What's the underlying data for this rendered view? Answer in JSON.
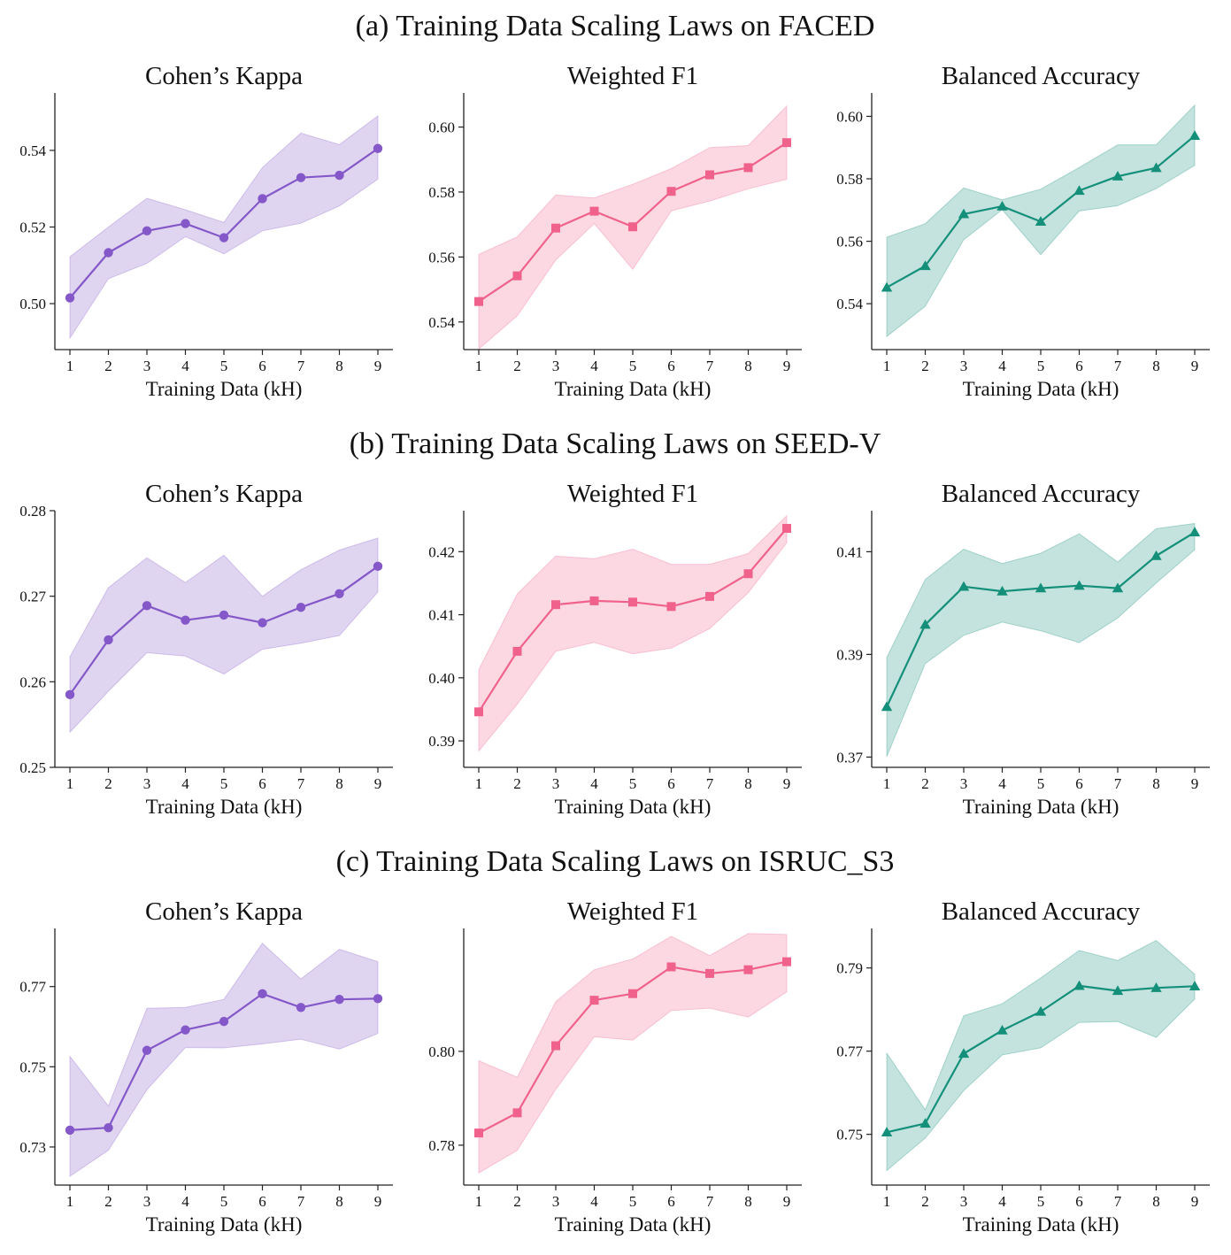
{
  "colors": {
    "kappa": "#8458c8",
    "f1": "#f0628c",
    "bacc": "#14907a"
  },
  "chart_data": [
    {
      "row_title": "(a) Training Data Scaling Laws on FACED",
      "panels": [
        {
          "type": "line",
          "title": "Cohen’s Kappa",
          "xlabel": "Training Data (kH)",
          "color_key": "kappa",
          "marker": "circle",
          "x": [
            1,
            2,
            3,
            4,
            5,
            6,
            7,
            8,
            9
          ],
          "ylim": [
            0.488,
            0.555
          ],
          "yticks": [
            0.5,
            0.52,
            0.54
          ],
          "ytick_labels": [
            "0.50",
            "0.52",
            "0.54"
          ],
          "values": [
            0.5015,
            0.5133,
            0.519,
            0.5209,
            0.5172,
            0.5274,
            0.5329,
            0.5335,
            0.5405
          ],
          "lower": [
            0.491,
            0.5065,
            0.5105,
            0.5175,
            0.513,
            0.519,
            0.521,
            0.5255,
            0.5325
          ],
          "upper": [
            0.5122,
            0.52,
            0.5275,
            0.5245,
            0.5212,
            0.5355,
            0.5445,
            0.5415,
            0.549
          ]
        },
        {
          "type": "line",
          "title": "Weighted F1",
          "xlabel": "Training Data (kH)",
          "color_key": "f1",
          "marker": "square",
          "x": [
            1,
            2,
            3,
            4,
            5,
            6,
            7,
            8,
            9
          ],
          "ylim": [
            0.5315,
            0.6105
          ],
          "yticks": [
            0.54,
            0.56,
            0.58,
            0.6
          ],
          "ytick_labels": [
            "0.54",
            "0.56",
            "0.58",
            "0.60"
          ],
          "values": [
            0.5463,
            0.5542,
            0.5689,
            0.5741,
            0.5693,
            0.5802,
            0.5853,
            0.5875,
            0.5952
          ],
          "lower": [
            0.5317,
            0.5419,
            0.5591,
            0.5703,
            0.5562,
            0.5742,
            0.5772,
            0.581,
            0.5839
          ],
          "upper": [
            0.5608,
            0.5662,
            0.5791,
            0.5782,
            0.5824,
            0.5872,
            0.5937,
            0.5943,
            0.6065
          ]
        },
        {
          "type": "line",
          "title": "Balanced Accuracy",
          "xlabel": "Training Data (kH)",
          "color_key": "bacc",
          "marker": "triangle",
          "x": [
            1,
            2,
            3,
            4,
            5,
            6,
            7,
            8,
            9
          ],
          "ylim": [
            0.5253,
            0.6075
          ],
          "yticks": [
            0.54,
            0.56,
            0.58,
            0.6
          ],
          "ytick_labels": [
            "0.54",
            "0.56",
            "0.58",
            "0.60"
          ],
          "values": [
            0.5452,
            0.5521,
            0.5687,
            0.5712,
            0.5663,
            0.5762,
            0.5808,
            0.5835,
            0.5938
          ],
          "lower": [
            0.5295,
            0.5392,
            0.5605,
            0.5701,
            0.5557,
            0.5697,
            0.5714,
            0.5769,
            0.5843
          ],
          "upper": [
            0.5613,
            0.5656,
            0.5771,
            0.5733,
            0.5767,
            0.5836,
            0.5909,
            0.5909,
            0.6036
          ]
        }
      ]
    },
    {
      "row_title": "(b) Training Data Scaling Laws on SEED-V",
      "panels": [
        {
          "type": "line",
          "title": "Cohen’s Kappa",
          "xlabel": "Training Data (kH)",
          "color_key": "kappa",
          "marker": "circle",
          "x": [
            1,
            2,
            3,
            4,
            5,
            6,
            7,
            8,
            9
          ],
          "ylim": [
            0.25,
            0.28
          ],
          "yticks": [
            0.25,
            0.26,
            0.27,
            0.28
          ],
          "ytick_labels": [
            "0.25",
            "0.26",
            "0.27",
            "0.28"
          ],
          "values": [
            0.2585,
            0.2649,
            0.2689,
            0.2672,
            0.2678,
            0.2669,
            0.2687,
            0.2703,
            0.2735
          ],
          "lower": [
            0.2541,
            0.2589,
            0.2634,
            0.263,
            0.2609,
            0.2638,
            0.2645,
            0.2654,
            0.2705
          ],
          "upper": [
            0.2629,
            0.271,
            0.2745,
            0.2716,
            0.2748,
            0.27,
            0.2731,
            0.2754,
            0.2768
          ]
        },
        {
          "type": "line",
          "title": "Weighted F1",
          "xlabel": "Training Data (kH)",
          "color_key": "f1",
          "marker": "square",
          "x": [
            1,
            2,
            3,
            4,
            5,
            6,
            7,
            8,
            9
          ],
          "ylim": [
            0.3858,
            0.4265
          ],
          "yticks": [
            0.39,
            0.4,
            0.41,
            0.42
          ],
          "ytick_labels": [
            "0.39",
            "0.40",
            "0.41",
            "0.42"
          ],
          "values": [
            0.3946,
            0.4042,
            0.4116,
            0.4122,
            0.412,
            0.4113,
            0.4129,
            0.4165,
            0.4237
          ],
          "lower": [
            0.3884,
            0.3958,
            0.4042,
            0.4056,
            0.4038,
            0.4047,
            0.4078,
            0.4135,
            0.4214
          ],
          "upper": [
            0.4013,
            0.4133,
            0.4193,
            0.4189,
            0.4204,
            0.418,
            0.418,
            0.4197,
            0.4257
          ]
        },
        {
          "type": "line",
          "title": "Balanced Accuracy",
          "xlabel": "Training Data (kH)",
          "color_key": "bacc",
          "marker": "triangle",
          "x": [
            1,
            2,
            3,
            4,
            5,
            6,
            7,
            8,
            9
          ],
          "ylim": [
            0.368,
            0.418
          ],
          "yticks": [
            0.37,
            0.39,
            0.41
          ],
          "ytick_labels": [
            "0.37",
            "0.39",
            "0.41"
          ],
          "values": [
            0.3798,
            0.3958,
            0.4032,
            0.4023,
            0.4029,
            0.4034,
            0.4029,
            0.4092,
            0.4138
          ],
          "lower": [
            0.3701,
            0.3882,
            0.3937,
            0.3963,
            0.3946,
            0.3923,
            0.3971,
            0.4039,
            0.4104
          ],
          "upper": [
            0.3894,
            0.4046,
            0.4105,
            0.4077,
            0.4097,
            0.4135,
            0.408,
            0.4145,
            0.4155
          ]
        }
      ]
    },
    {
      "row_title": "(c) Training Data Scaling Laws on ISRUC_S3",
      "panels": [
        {
          "type": "line",
          "title": "Cohen’s Kappa",
          "xlabel": "Training Data (kH)",
          "color_key": "kappa",
          "marker": "circle",
          "x": [
            1,
            2,
            3,
            4,
            5,
            6,
            7,
            8,
            9
          ],
          "ylim": [
            0.7205,
            0.7845
          ],
          "yticks": [
            0.73,
            0.75,
            0.77
          ],
          "ytick_labels": [
            "0.73",
            "0.75",
            "0.77"
          ],
          "values": [
            0.7342,
            0.7348,
            0.7541,
            0.7592,
            0.7613,
            0.7682,
            0.7648,
            0.7668,
            0.767
          ],
          "lower": [
            0.7227,
            0.7292,
            0.7443,
            0.7548,
            0.7547,
            0.7557,
            0.7569,
            0.7544,
            0.7583
          ],
          "upper": [
            0.7526,
            0.7402,
            0.7646,
            0.7648,
            0.7668,
            0.7808,
            0.7719,
            0.7793,
            0.7762
          ]
        },
        {
          "type": "line",
          "title": "Weighted F1",
          "xlabel": "Training Data (kH)",
          "color_key": "f1",
          "marker": "square",
          "x": [
            1,
            2,
            3,
            4,
            5,
            6,
            7,
            8,
            9
          ],
          "ylim": [
            0.7715,
            0.8262
          ],
          "yticks": [
            0.78,
            0.8
          ],
          "ytick_labels": [
            "0.78",
            "0.80"
          ],
          "values": [
            0.7826,
            0.7869,
            0.8012,
            0.8109,
            0.8123,
            0.818,
            0.8166,
            0.8174,
            0.8191
          ],
          "lower": [
            0.7741,
            0.7789,
            0.7919,
            0.8031,
            0.8024,
            0.8087,
            0.8092,
            0.8073,
            0.8127
          ],
          "upper": [
            0.798,
            0.7945,
            0.8106,
            0.8174,
            0.8197,
            0.8245,
            0.8204,
            0.8251,
            0.8249
          ]
        },
        {
          "type": "line",
          "title": "Balanced Accuracy",
          "xlabel": "Training Data (kH)",
          "color_key": "bacc",
          "marker": "triangle",
          "x": [
            1,
            2,
            3,
            4,
            5,
            6,
            7,
            8,
            9
          ],
          "ylim": [
            0.7378,
            0.7995
          ],
          "yticks": [
            0.75,
            0.77,
            0.79
          ],
          "ytick_labels": [
            "0.75",
            "0.77",
            "0.79"
          ],
          "values": [
            0.7505,
            0.7526,
            0.7694,
            0.775,
            0.7795,
            0.7857,
            0.7845,
            0.7852,
            0.7856
          ],
          "lower": [
            0.7413,
            0.7491,
            0.7605,
            0.7691,
            0.7708,
            0.7769,
            0.7771,
            0.7733,
            0.7825
          ],
          "upper": [
            0.7695,
            0.7559,
            0.7785,
            0.7814,
            0.7876,
            0.7942,
            0.7918,
            0.7966,
            0.7885
          ]
        }
      ]
    }
  ]
}
